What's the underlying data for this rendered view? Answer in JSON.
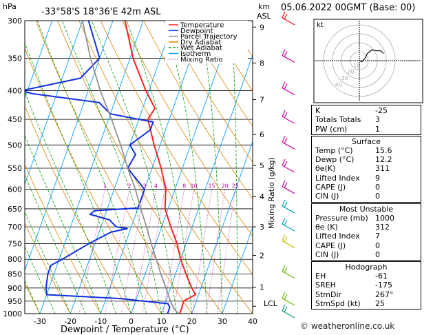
{
  "header": {
    "location": "-33°58'S 18°36'E 42m ASL",
    "timestamp": "05.06.2022 00GMT (Base: 00)"
  },
  "axes": {
    "y_left_unit": "hPa",
    "y_right_unit_top": "km",
    "y_right_unit_bottom": "ASL",
    "x_label": "Dewpoint / Temperature (°C)",
    "mixing_ratio_label": "Mixing Ratio (g/kg)",
    "lcl_label": "LCL",
    "pressure_ticks": [
      "300",
      "350",
      "400",
      "450",
      "500",
      "550",
      "600",
      "650",
      "700",
      "750",
      "800",
      "850",
      "900",
      "950",
      "1000"
    ],
    "temperature_ticks": [
      "-30",
      "-20",
      "-10",
      "0",
      "10",
      "20",
      "30",
      "40"
    ],
    "km_ticks": [
      "9",
      "8",
      "7",
      "6",
      "5",
      "4",
      "3",
      "2",
      "1"
    ],
    "mixing_ratio_ticks": [
      "1",
      "2",
      "3",
      "4",
      "5",
      "8",
      "10",
      "15",
      "20",
      "25"
    ]
  },
  "legend": [
    {
      "label": "Temperature",
      "color": "#ff2020"
    },
    {
      "label": "Dewpoint",
      "color": "#1030e0"
    },
    {
      "label": "Parcel Trajectory",
      "color": "#909090"
    },
    {
      "label": "Dry Adiabat",
      "color": "#e08000"
    },
    {
      "label": "Wet Adiabat",
      "color": "#00a000"
    },
    {
      "label": "Isotherm",
      "color": "#00a0ff"
    },
    {
      "label": "Mixing Ratio",
      "color": "#c000a0"
    }
  ],
  "chart_data": {
    "type": "line",
    "title": "",
    "xlabel": "Dewpoint / Temperature (°C)",
    "ylabel": "hPa",
    "xlim": [
      -35,
      40
    ],
    "ylim": [
      1000,
      300
    ],
    "series": [
      {
        "name": "Temperature",
        "color": "#ff2020",
        "points": [
          [
            1000,
            16
          ],
          [
            975,
            16
          ],
          [
            950,
            15.8
          ],
          [
            925,
            19
          ],
          [
            900,
            17
          ],
          [
            850,
            13.5
          ],
          [
            800,
            10
          ],
          [
            750,
            7
          ],
          [
            700,
            3
          ],
          [
            650,
            -1
          ],
          [
            600,
            -3
          ],
          [
            550,
            -7
          ],
          [
            500,
            -12
          ],
          [
            450,
            -17
          ],
          [
            430,
            -16
          ],
          [
            400,
            -21
          ],
          [
            350,
            -29
          ],
          [
            300,
            -36
          ]
        ]
      },
      {
        "name": "Dewpoint",
        "color": "#1030e0",
        "points": [
          [
            1000,
            12
          ],
          [
            975,
            12
          ],
          [
            960,
            11
          ],
          [
            940,
            -5
          ],
          [
            925,
            -30
          ],
          [
            900,
            -31
          ],
          [
            850,
            -32
          ],
          [
            820,
            -32
          ],
          [
            800,
            -29
          ],
          [
            750,
            -22
          ],
          [
            715,
            -16
          ],
          [
            705,
            -11
          ],
          [
            700,
            -15
          ],
          [
            680,
            -18
          ],
          [
            665,
            -25
          ],
          [
            655,
            -24
          ],
          [
            648,
            -10
          ],
          [
            600,
            -10
          ],
          [
            550,
            -18
          ],
          [
            520,
            -17
          ],
          [
            500,
            -20
          ],
          [
            470,
            -15
          ],
          [
            455,
            -15
          ],
          [
            440,
            -30
          ],
          [
            420,
            -35
          ],
          [
            405,
            -58
          ],
          [
            400,
            -62
          ],
          [
            380,
            -44
          ],
          [
            350,
            -40
          ],
          [
            300,
            -48
          ]
        ]
      },
      {
        "name": "Parcel Trajectory",
        "color": "#909090",
        "points": [
          [
            1000,
            15.6
          ],
          [
            980,
            13.5
          ],
          [
            950,
            11.5
          ],
          [
            900,
            8.5
          ],
          [
            850,
            5.2
          ],
          [
            800,
            2
          ],
          [
            750,
            -1.5
          ],
          [
            700,
            -5
          ],
          [
            650,
            -9
          ],
          [
            600,
            -13
          ],
          [
            550,
            -18
          ],
          [
            500,
            -23
          ],
          [
            450,
            -29
          ],
          [
            400,
            -36
          ],
          [
            350,
            -43
          ],
          [
            300,
            -50
          ]
        ]
      }
    ],
    "wind_barbs": [
      {
        "p": 300,
        "color": "#ff0000"
      },
      {
        "p": 350,
        "color": "#d000a0"
      },
      {
        "p": 400,
        "color": "#d000a0"
      },
      {
        "p": 450,
        "color": "#d000a0"
      },
      {
        "p": 500,
        "color": "#d000a0"
      },
      {
        "p": 550,
        "color": "#d000a0"
      },
      {
        "p": 600,
        "color": "#d000a0"
      },
      {
        "p": 650,
        "color": "#00a0c0"
      },
      {
        "p": 700,
        "color": "#00a0c0"
      },
      {
        "p": 750,
        "color": "#c0c000"
      },
      {
        "p": 850,
        "color": "#60c000"
      },
      {
        "p": 950,
        "color": "#60c000"
      },
      {
        "p": 1000,
        "color": "#00a080"
      }
    ],
    "hodograph": {
      "unit": "kt",
      "rings": [
        10,
        20,
        30,
        40
      ],
      "ring_labels": [
        "10",
        "20",
        "30",
        "40"
      ],
      "trace": [
        [
          0,
          0
        ],
        [
          3,
          -1
        ],
        [
          6,
          2
        ],
        [
          9,
          8
        ],
        [
          14,
          12
        ],
        [
          20,
          11
        ],
        [
          24,
          11
        ],
        [
          27,
          8
        ],
        [
          25,
          10
        ]
      ]
    }
  },
  "indices": {
    "top": [
      {
        "label": "K",
        "value": "-25"
      },
      {
        "label": "Totals Totals",
        "value": "3"
      },
      {
        "label": "PW (cm)",
        "value": "1"
      }
    ],
    "surface": {
      "title": "Surface",
      "rows": [
        {
          "label": "Temp (°C)",
          "value": "15.6"
        },
        {
          "label": "Dewp (°C)",
          "value": "12.2"
        },
        {
          "label": "θe(K)",
          "value": "311"
        },
        {
          "label": "Lifted Index",
          "value": "9"
        },
        {
          "label": "CAPE (J)",
          "value": "0"
        },
        {
          "label": "CIN (J)",
          "value": "0"
        }
      ]
    },
    "most_unstable": {
      "title": "Most Unstable",
      "rows": [
        {
          "label": "Pressure (mb)",
          "value": "1000"
        },
        {
          "label": "θe (K)",
          "value": "312"
        },
        {
          "label": "Lifted Index",
          "value": "7"
        },
        {
          "label": "CAPE (J)",
          "value": "0"
        },
        {
          "label": "CIN (J)",
          "value": "0"
        }
      ]
    },
    "hodograph_tbl": {
      "title": "Hodograph",
      "rows": [
        {
          "label": "EH",
          "value": "-61"
        },
        {
          "label": "SREH",
          "value": "-175"
        },
        {
          "label": "StmDir",
          "value": "267°"
        },
        {
          "label": "StmSpd (kt)",
          "value": "25"
        }
      ]
    }
  },
  "footer": "© weatheronline.co.uk"
}
